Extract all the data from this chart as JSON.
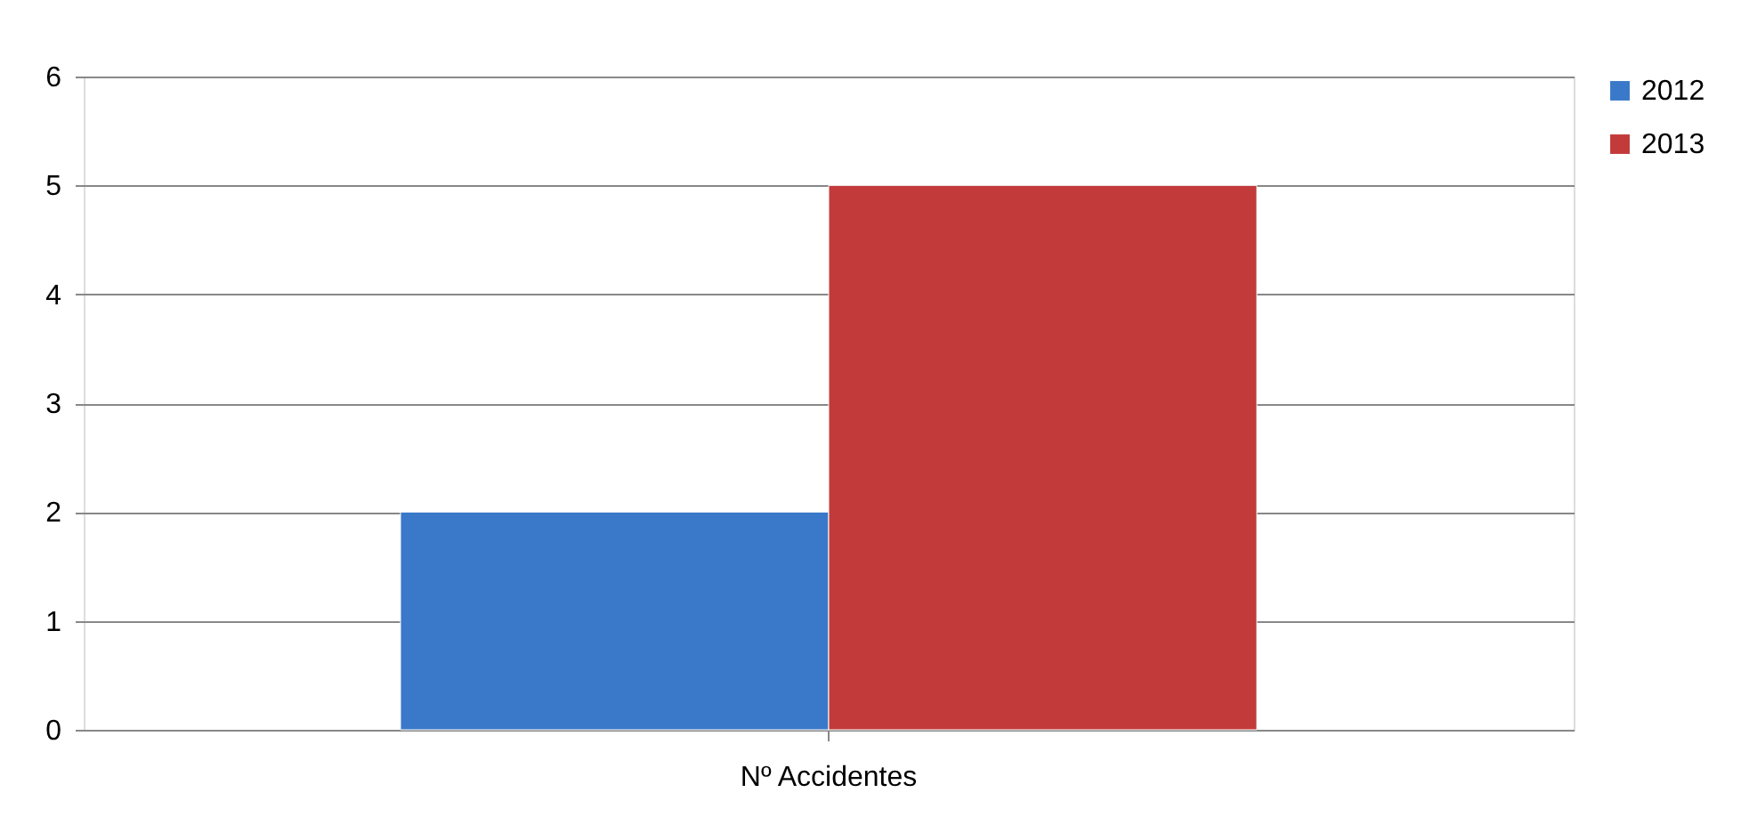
{
  "chart_data": {
    "type": "bar",
    "categories": [
      "Nº Accidentes"
    ],
    "series": [
      {
        "name": "2012",
        "color": "#3a78c9",
        "values": [
          2
        ]
      },
      {
        "name": "2013",
        "color": "#c23b3a",
        "values": [
          5
        ]
      }
    ],
    "ylim": [
      0,
      6
    ],
    "yticks": [
      0,
      1,
      2,
      3,
      4,
      5,
      6
    ],
    "grid": "y",
    "legend": "right"
  }
}
